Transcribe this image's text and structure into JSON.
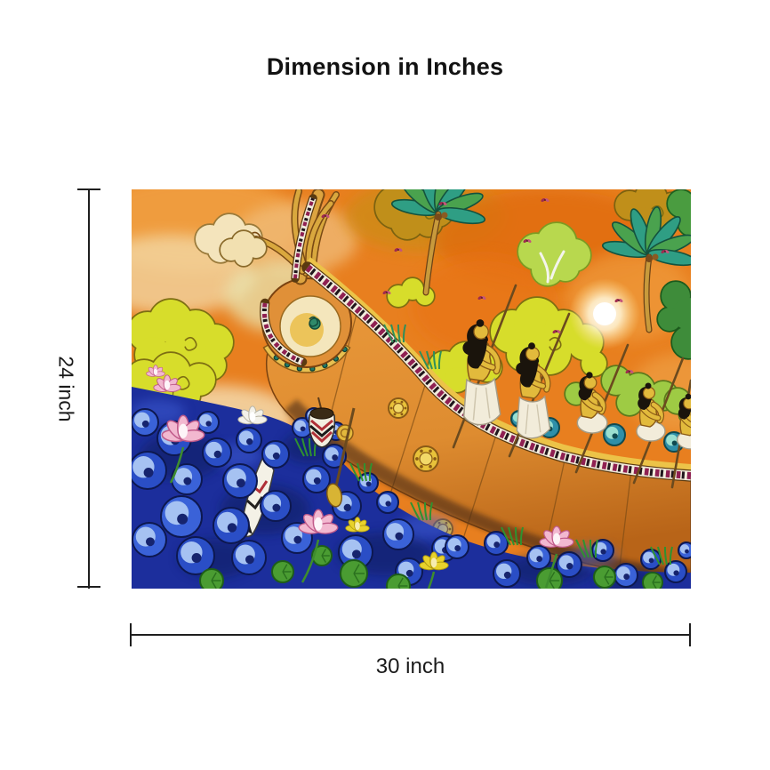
{
  "title": "Dimension in Inches",
  "dims": {
    "height_label": "24 inch",
    "width_label": "30 inch"
  },
  "artwork": {
    "name": "kerala-mural-snake-boat-painting",
    "palette": {
      "sky_orange": "#e87f1f",
      "sky_deep_orange": "#dd6a0a",
      "cloud_yellow_green": "#d7dd2b",
      "cloud_mustard": "#c08f1a",
      "cloud_green": "#9ecb44",
      "hull_orange": "#de8c30",
      "hull_shadow": "#4a2c12",
      "gold": "#d9a83e",
      "chevron_white": "#f2ecdc",
      "chevron_maroon": "#8f2052",
      "palm_teal": "#2f9e84",
      "palm_green": "#4aa24e",
      "water_blue": "#1c2e9c",
      "water_curl_light": "#a6c2f2",
      "water_navy": "#0f1a58",
      "lotus_pink": "#f2b8d0",
      "lotus_yellow": "#e8d22c",
      "skin_yellow": "#e2ba3c",
      "dhoti_white": "#f2ecda"
    }
  },
  "page": {
    "background": "#ffffff",
    "line_color": "#1f1f1f",
    "text_color": "#141414"
  }
}
